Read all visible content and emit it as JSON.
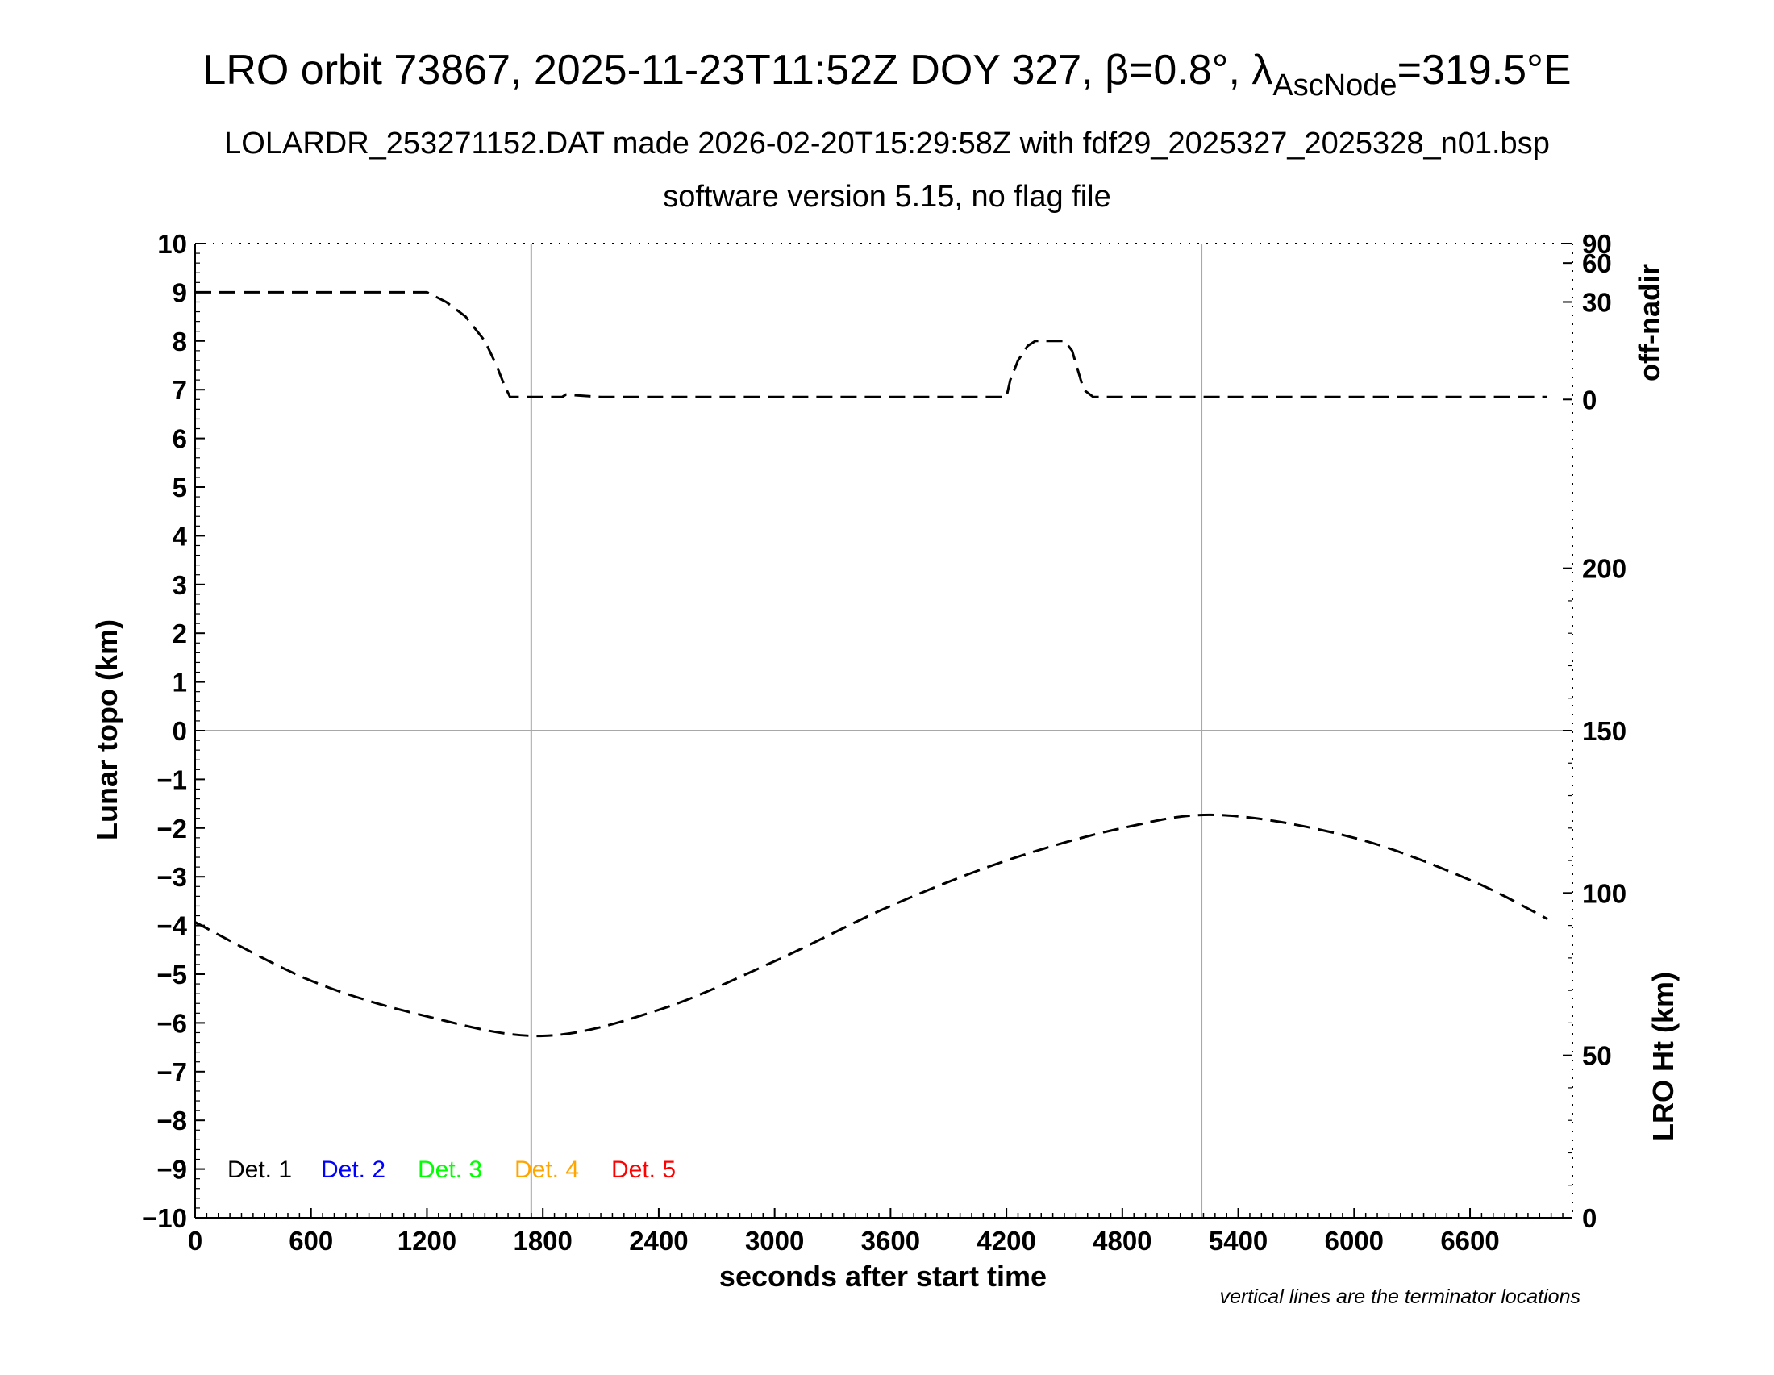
{
  "header": {
    "title_prefix": "LRO orbit 73867, 2025-11-23T11:52Z DOY 327, ",
    "beta_symbol": "β",
    "beta_value": "=0.8°, ",
    "lambda_symbol": "λ",
    "lambda_sub": "AscNode",
    "lambda_value": "=319.5°E",
    "subtitle1": "LOLARDR_253271152.DAT made 2026-02-20T15:29:58Z with fdf29_2025327_2025328_n01.bsp",
    "subtitle2": "software version 5.15, no flag file"
  },
  "footnote": "vertical lines are the terminator locations",
  "chart_data": {
    "type": "line",
    "xlabel": "seconds after start time",
    "ylabel_left": "Lunar topo (km)",
    "ylabel_right_top": "off-nadir",
    "ylabel_right_bottom": "LRO Ht (km)",
    "xlim": [
      0,
      7130
    ],
    "ylim_left": [
      -10,
      10
    ],
    "x_ticks": [
      "0",
      "600",
      "1200",
      "1800",
      "2400",
      "3000",
      "3600",
      "4200",
      "4800",
      "5400",
      "6000",
      "6600"
    ],
    "x_tick_values": [
      0,
      600,
      1200,
      1800,
      2400,
      3000,
      3600,
      4200,
      4800,
      5400,
      6000,
      6600
    ],
    "y_left_ticks": [
      "10",
      "9",
      "8",
      "7",
      "6",
      "5",
      "4",
      "3",
      "2",
      "1",
      "0",
      "−1",
      "−2",
      "−3",
      "−4",
      "−5",
      "−6",
      "−7",
      "−8",
      "−9",
      "−10"
    ],
    "y_left_tick_values": [
      10,
      9,
      8,
      7,
      6,
      5,
      4,
      3,
      2,
      1,
      0,
      -1,
      -2,
      -3,
      -4,
      -5,
      -6,
      -7,
      -8,
      -9,
      -10
    ],
    "off_nadir_ticks": [
      "90",
      "60",
      "30",
      "0"
    ],
    "off_nadir_tick_topo": [
      10,
      9.6,
      8.8,
      6.8
    ],
    "lro_ht_ticks": [
      "200",
      "150",
      "100",
      "50",
      "0"
    ],
    "lro_ht_tick_values": [
      200,
      150,
      100,
      50,
      0
    ],
    "lro_ht_range": [
      0,
      300
    ],
    "terminator_x": [
      1740,
      5210
    ],
    "grid_zero_line": true,
    "legend": [
      {
        "label": "Det. 1",
        "color": "#000000"
      },
      {
        "label": "Det. 2",
        "color": "#0000ff"
      },
      {
        "label": "Det. 3",
        "color": "#00ff00"
      },
      {
        "label": "Det. 4",
        "color": "#ffa500"
      },
      {
        "label": "Det. 5",
        "color": "#ff0000"
      }
    ],
    "series": [
      {
        "axis": "off-nadir",
        "x": [
          0,
          1200,
          1300,
          1400,
          1500,
          1560,
          1600,
          1630,
          1900,
          1920,
          2100,
          4200,
          4220,
          4260,
          4310,
          4350,
          4400,
          4500,
          4540,
          4570,
          4600,
          4650,
          7000
        ],
        "y_topo": [
          9,
          9,
          8.8,
          8.5,
          8.0,
          7.5,
          7.1,
          6.85,
          6.85,
          6.9,
          6.85,
          6.85,
          7.2,
          7.6,
          7.9,
          8.0,
          8.0,
          8.0,
          7.8,
          7.4,
          7.0,
          6.85,
          6.85
        ]
      },
      {
        "axis": "LRO Ht",
        "x": [
          0,
          600,
          1200,
          1800,
          2400,
          3000,
          3600,
          4200,
          4800,
          5310,
          6000,
          6600,
          7000
        ],
        "y": [
          91,
          73,
          62,
          56,
          64,
          79,
          96,
          110,
          120,
          124,
          117,
          104,
          92
        ]
      }
    ]
  }
}
